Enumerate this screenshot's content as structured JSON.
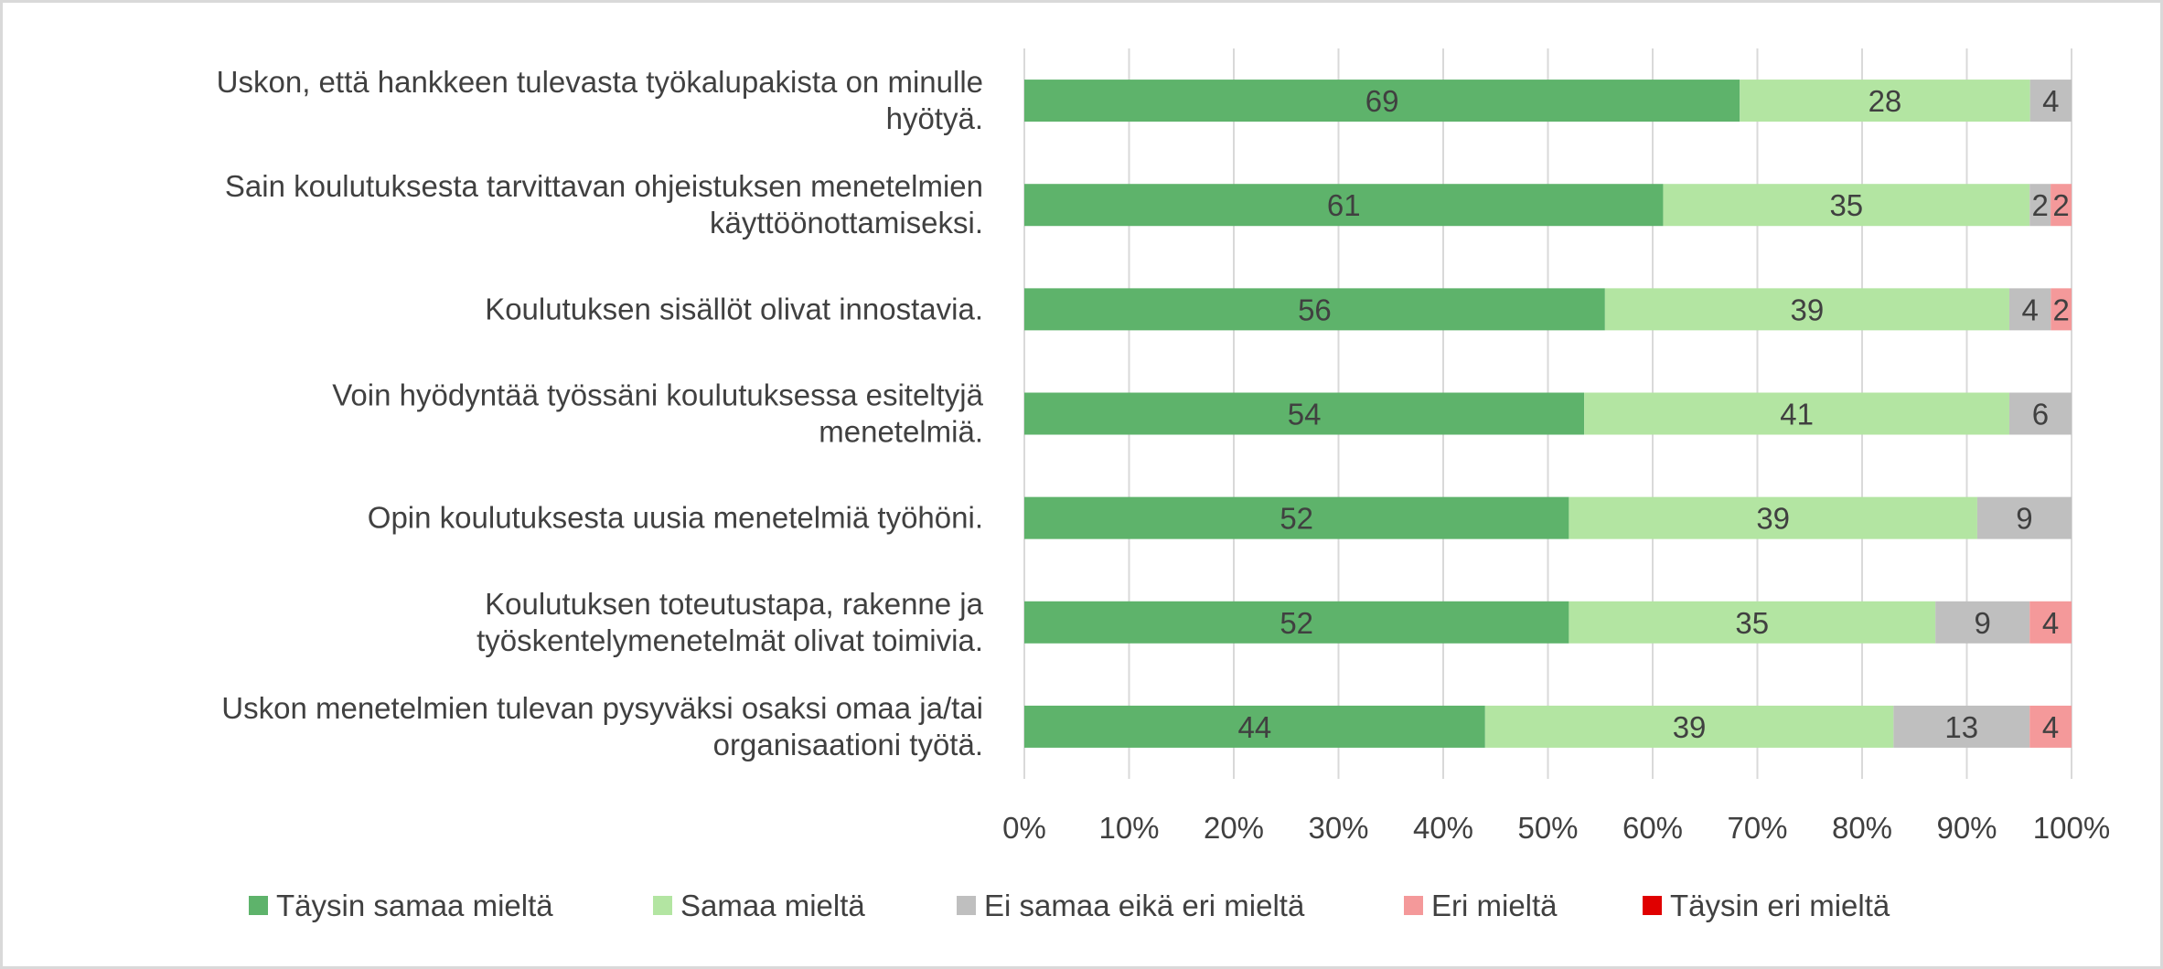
{
  "chart_data": {
    "type": "bar",
    "orientation": "horizontal",
    "stacked": "percent",
    "categories": [
      [
        "Uskon, että hankkeen tulevasta työkalupakista on minulle",
        "hyötyä."
      ],
      [
        "Sain koulutuksesta tarvittavan ohjeistuksen menetelmien",
        "käyttöönottamiseksi."
      ],
      [
        "Koulutuksen sisällöt olivat innostavia."
      ],
      [
        "Voin hyödyntää työssäni koulutuksessa esiteltyjä",
        "menetelmiä."
      ],
      [
        "Opin koulutuksesta uusia menetelmiä työhöni."
      ],
      [
        "Koulutuksen toteutustapa, rakenne ja",
        "työskentelymenetelmät olivat toimivia."
      ],
      [
        "Uskon menetelmien tulevan pysyväksi osaksi omaa ja/tai",
        "organisaationi työtä."
      ]
    ],
    "series": [
      {
        "name": "Täysin samaa mieltä",
        "color": "#5eb36b",
        "values": [
          69,
          61,
          56,
          54,
          52,
          52,
          44
        ]
      },
      {
        "name": "Samaa mieltä",
        "color": "#b3e5a2",
        "values": [
          28,
          35,
          39,
          41,
          39,
          35,
          39
        ]
      },
      {
        "name": "Ei samaa eikä eri mieltä",
        "color": "#bfbfbf",
        "values": [
          4,
          2,
          4,
          6,
          9,
          9,
          13
        ]
      },
      {
        "name": "Eri mieltä",
        "color": "#f4999a",
        "values": [
          null,
          2,
          2,
          null,
          null,
          4,
          4
        ]
      },
      {
        "name": "Täysin eri mieltä",
        "color": "#e00000",
        "values": [
          null,
          null,
          null,
          null,
          null,
          null,
          null
        ]
      }
    ],
    "xticks": [
      "0%",
      "10%",
      "20%",
      "30%",
      "40%",
      "50%",
      "60%",
      "70%",
      "80%",
      "90%",
      "100%"
    ],
    "xlim": [
      0,
      100
    ],
    "grid": "vertical",
    "legend": "bottom",
    "title": "",
    "xlabel": "",
    "ylabel": ""
  }
}
